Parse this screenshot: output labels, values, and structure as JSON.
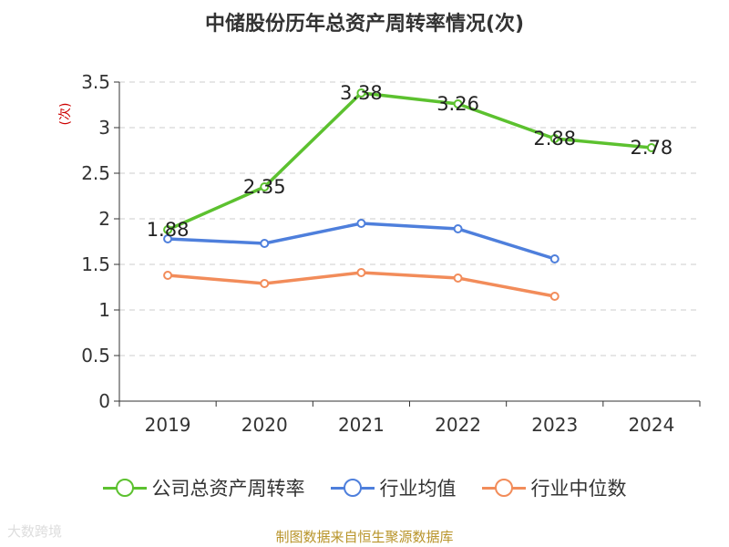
{
  "title": "中储股份历年总资产周转率情况(次)",
  "source": "制图数据来自恒生聚源数据库",
  "watermark": "大数跨境",
  "chart_data": {
    "type": "line",
    "title": "中储股份历年总资产周转率情况(次)",
    "ylabel": "(次)",
    "ylim": [
      0,
      3.5
    ],
    "yticks": [
      "0",
      "0.5",
      "1",
      "1.5",
      "2",
      "2.5",
      "3",
      "3.5"
    ],
    "grid": true,
    "legend_position": "bottom",
    "categories": [
      "2019",
      "2020",
      "2021",
      "2022",
      "2023",
      "2024"
    ],
    "series": [
      {
        "name": "公司总资产周转率",
        "color": "#5cc12f",
        "values": [
          1.88,
          2.35,
          3.38,
          3.26,
          2.88,
          2.78
        ],
        "labels": true
      },
      {
        "name": "行业均值",
        "color": "#4e7fdc",
        "values": [
          1.78,
          1.73,
          1.95,
          1.89,
          1.56,
          null
        ],
        "labels": false
      },
      {
        "name": "行业中位数",
        "color": "#f28c5a",
        "values": [
          1.38,
          1.29,
          1.41,
          1.35,
          1.15,
          null
        ],
        "labels": false
      }
    ]
  }
}
